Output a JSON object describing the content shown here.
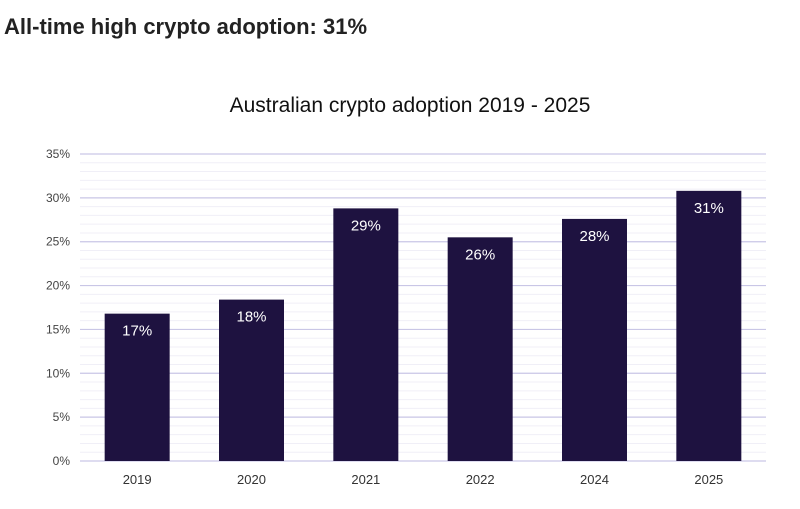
{
  "headline": "All-time high crypto adoption: 31%",
  "chart_data": {
    "type": "bar",
    "title": "Australian crypto adoption 2019 - 2025",
    "xlabel": "",
    "ylabel": "",
    "categories": [
      "2019",
      "2020",
      "2021",
      "2022",
      "2024",
      "2025"
    ],
    "values": [
      16.8,
      18.4,
      28.8,
      25.5,
      27.6,
      30.8
    ],
    "data_labels": [
      "17%",
      "18%",
      "29%",
      "26%",
      "28%",
      "31%"
    ],
    "ylim": [
      0,
      35
    ],
    "yticks": [
      "0%",
      "5%",
      "10%",
      "15%",
      "20%",
      "25%",
      "30%",
      "35%"
    ],
    "grid": true,
    "bar_color": "#1e1240",
    "grid_color": "#c9c6e6"
  }
}
